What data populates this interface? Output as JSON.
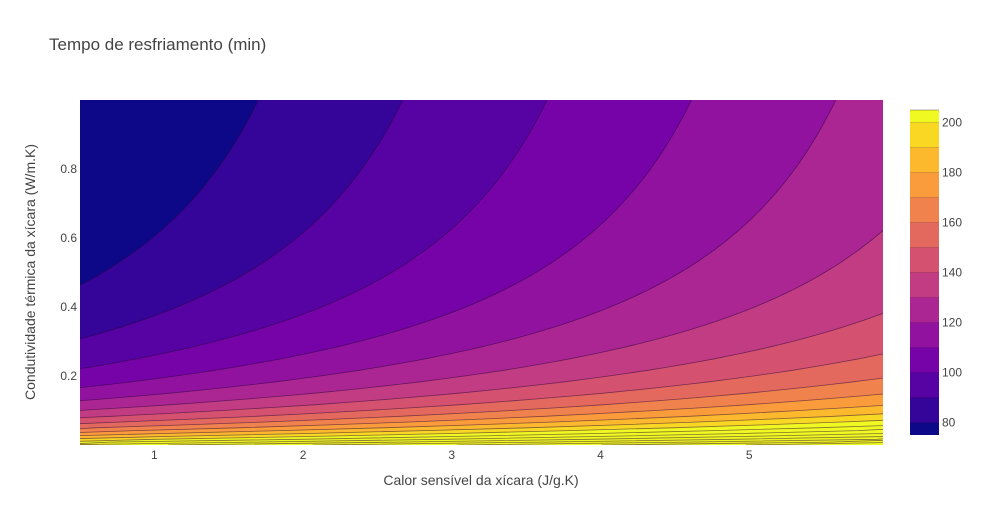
{
  "chart_data": {
    "type": "contour",
    "title": "Tempo de resfriamento (min)",
    "xlabel": "Calor sensível da xícara (J/g.K)",
    "ylabel": "Condutividade térmica da xícara (W/m.K)",
    "xlim": [
      0.5,
      5.9
    ],
    "ylim": [
      0.0,
      1.0
    ],
    "x_ticks": [
      1,
      2,
      3,
      4,
      5
    ],
    "y_ticks": [
      0.2,
      0.4,
      0.6,
      0.8
    ],
    "x_tick_labels": [
      "1",
      "2",
      "3",
      "4",
      "5"
    ],
    "y_tick_labels": [
      "0.2",
      "0.4",
      "0.6",
      "0.8"
    ],
    "colorbar": {
      "range": [
        75,
        205
      ],
      "level_step": 10,
      "ticks": [
        80,
        100,
        120,
        140,
        160,
        180,
        200
      ],
      "tick_labels": [
        "80",
        "100",
        "120",
        "140",
        "160",
        "180",
        "200"
      ]
    },
    "colorscale": [
      "#0d0887",
      "#46039f",
      "#7201a8",
      "#9c179e",
      "#bd3786",
      "#d8576b",
      "#ed7953",
      "#fb9f3a",
      "#fdca26",
      "#f0f921"
    ],
    "grid": false
  }
}
